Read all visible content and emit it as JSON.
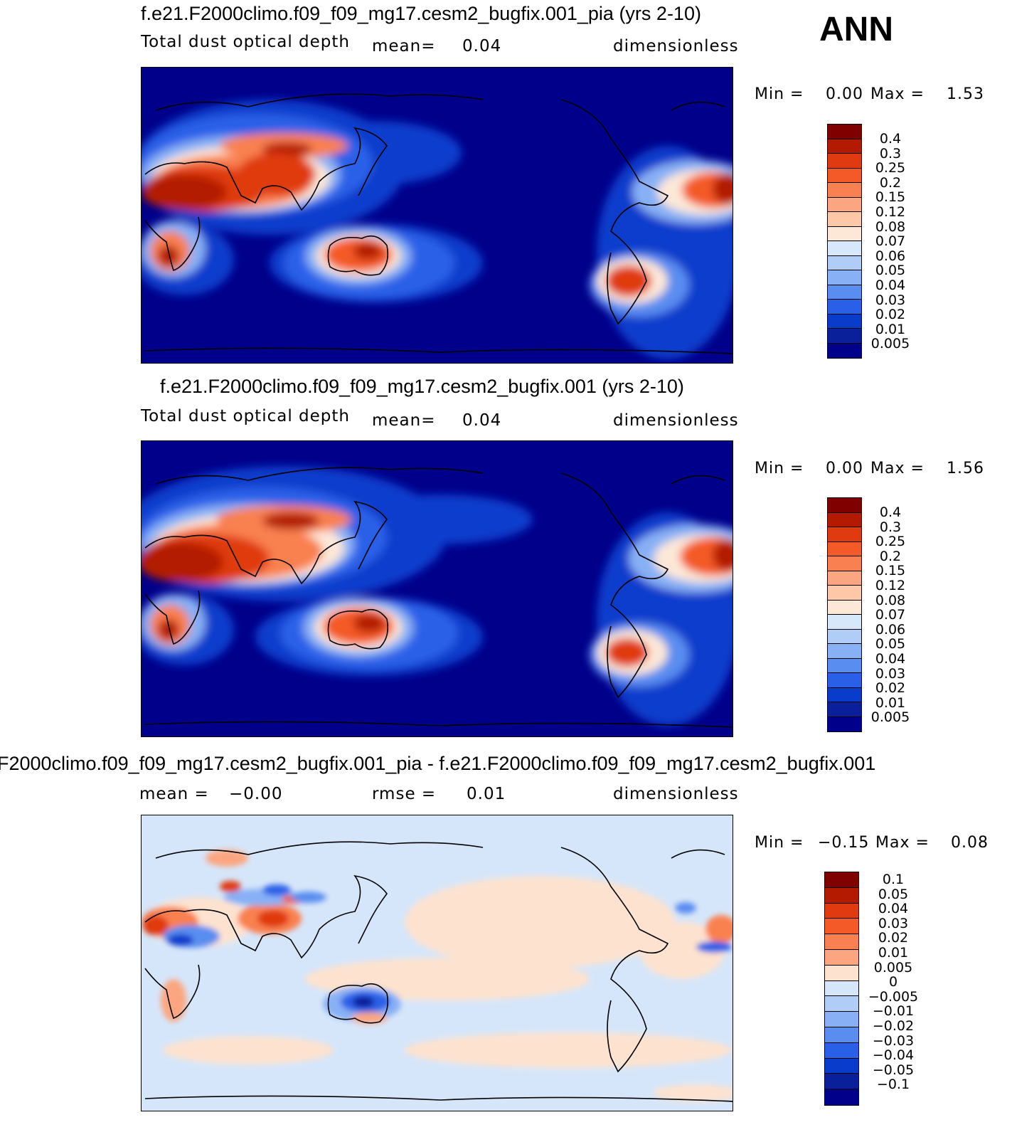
{
  "season": "ANN",
  "panels": [
    {
      "title": "f.e21.F2000climo.f09_f09_mg17.cesm2_bugfix.001_pia (yrs 2-10)",
      "left_label": "Total dust optical depth",
      "stat_label": "mean=",
      "stat_value": "0.04",
      "units": "dimensionless",
      "min_label": "Min =",
      "min_value": "0.00",
      "max_label": "Max =",
      "max_value": "1.53",
      "colorbar_levels": [
        "0.4",
        "0.3",
        "0.25",
        "0.2",
        "0.15",
        "0.12",
        "0.08",
        "0.07",
        "0.06",
        "0.05",
        "0.04",
        "0.03",
        "0.02",
        "0.01",
        "0.005"
      ]
    },
    {
      "title": "f.e21.F2000climo.f09_f09_mg17.cesm2_bugfix.001 (yrs 2-10)",
      "left_label": "Total dust optical depth",
      "stat_label": "mean=",
      "stat_value": "0.04",
      "units": "dimensionless",
      "min_label": "Min =",
      "min_value": "0.00",
      "max_label": "Max =",
      "max_value": "1.56",
      "colorbar_levels": [
        "0.4",
        "0.3",
        "0.25",
        "0.2",
        "0.15",
        "0.12",
        "0.08",
        "0.07",
        "0.06",
        "0.05",
        "0.04",
        "0.03",
        "0.02",
        "0.01",
        "0.005"
      ]
    },
    {
      "title": "F2000climo.f09_f09_mg17.cesm2_bugfix.001_pia - f.e21.F2000climo.f09_f09_mg17.cesm2_bugfix.001",
      "mean_label": "mean =",
      "mean_value": "−0.00",
      "rmse_label": "rmse =",
      "rmse_value": "0.01",
      "units": "dimensionless",
      "min_label": "Min =",
      "min_value": "−0.15",
      "max_label": "Max =",
      "max_value": "0.08",
      "colorbar_levels": [
        "0.1",
        "0.05",
        "0.04",
        "0.03",
        "0.02",
        "0.01",
        "0.005",
        "0",
        "−0.005",
        "−0.01",
        "−0.02",
        "−0.03",
        "−0.04",
        "−0.05",
        "−0.1"
      ]
    }
  ],
  "colors": {
    "seq_scale": [
      "#800000",
      "#b31a00",
      "#e03a10",
      "#f45a28",
      "#f98050",
      "#fba680",
      "#fdc8a8",
      "#fde8d8",
      "#d8e8fb",
      "#b0cdf8",
      "#88b0f5",
      "#5a8df0",
      "#2a60e8",
      "#0a3ccc",
      "#0a1f9a",
      "#00008a"
    ],
    "div_scale": [
      "#800000",
      "#b31a00",
      "#e03a10",
      "#f45a28",
      "#f98050",
      "#fba680",
      "#fde2cf",
      "#d6e6fa",
      "#b0cdf8",
      "#88b0f5",
      "#5a8df0",
      "#2a60e8",
      "#0a3ccc",
      "#0a1f9a",
      "#00008a"
    ]
  }
}
